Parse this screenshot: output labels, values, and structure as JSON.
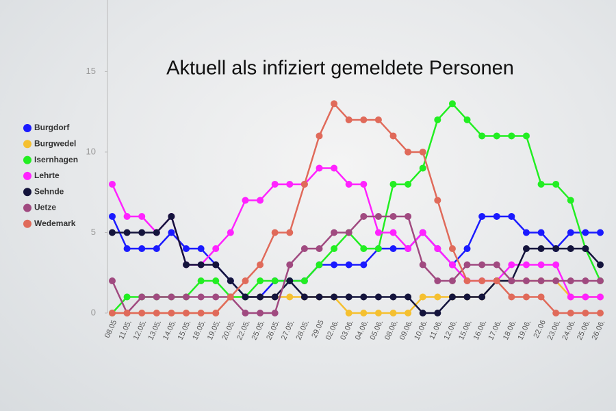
{
  "chart_data": {
    "type": "line",
    "title": "Aktuell als infiziert gemeldete Personen",
    "categories": [
      "08.05",
      "11.05.",
      "12.05.",
      "13.05.",
      "14.05.",
      "15.05.",
      "18.05.",
      "19.05.",
      "20.05.",
      "22.05.",
      "25.05.",
      "26.05.",
      "27.05.",
      "28.05.",
      "29.05",
      "02.06.",
      "03.06.",
      "04.06.",
      "05.06.",
      "08.06.",
      "09.06.",
      "10.06.",
      "11.06.",
      "12.06.",
      "15.06.",
      "16.06.",
      "17.06.",
      "18.06.",
      "19.06.",
      "22.06",
      "23.06.",
      "24.06.",
      "25.06.",
      "26.06."
    ],
    "series": [
      {
        "name": "Burgdorf",
        "color": "#1a1aff",
        "values": [
          6,
          4,
          4,
          4,
          5,
          4,
          4,
          3,
          2,
          1,
          1,
          2,
          2,
          2,
          3,
          3,
          3,
          3,
          4,
          4,
          4,
          5,
          4,
          3,
          4,
          6,
          6,
          6,
          5,
          5,
          4,
          5,
          5,
          5
        ]
      },
      {
        "name": "Burgwedel",
        "color": "#f5c030",
        "values": [
          0,
          0,
          0,
          0,
          0,
          0,
          0,
          0,
          1,
          1,
          1,
          1,
          1,
          1,
          1,
          1,
          0,
          0,
          0,
          0,
          0,
          1,
          1,
          1,
          1,
          1,
          2,
          2,
          2,
          2,
          2,
          1,
          1,
          1
        ]
      },
      {
        "name": "Isernhagen",
        "color": "#22ee22",
        "values": [
          0,
          1,
          1,
          1,
          1,
          1,
          2,
          2,
          1,
          1,
          2,
          2,
          2,
          2,
          3,
          4,
          5,
          4,
          4,
          8,
          8,
          9,
          12,
          13,
          12,
          11,
          11,
          11,
          11,
          8,
          8,
          7,
          4,
          2
        ]
      },
      {
        "name": "Lehrte",
        "color": "#ff22ff",
        "values": [
          8,
          6,
          6,
          5,
          6,
          3,
          3,
          4,
          5,
          7,
          7,
          8,
          8,
          8,
          9,
          9,
          8,
          8,
          5,
          5,
          4,
          5,
          4,
          3,
          2,
          2,
          2,
          3,
          3,
          3,
          3,
          1,
          1,
          1
        ]
      },
      {
        "name": "Sehnde",
        "color": "#14143c",
        "values": [
          5,
          5,
          5,
          5,
          6,
          3,
          3,
          3,
          2,
          1,
          1,
          1,
          2,
          1,
          1,
          1,
          1,
          1,
          1,
          1,
          1,
          0,
          0,
          1,
          1,
          1,
          2,
          2,
          4,
          4,
          4,
          4,
          4,
          3
        ]
      },
      {
        "name": "Uetze",
        "color": "#a04a80",
        "values": [
          2,
          0,
          1,
          1,
          1,
          1,
          1,
          1,
          1,
          0,
          0,
          0,
          3,
          4,
          4,
          5,
          5,
          6,
          6,
          6,
          6,
          3,
          2,
          2,
          3,
          3,
          3,
          2,
          2,
          2,
          2,
          2,
          2,
          2
        ]
      },
      {
        "name": "Wedemark",
        "color": "#e06a5a",
        "values": [
          0,
          0,
          0,
          0,
          0,
          0,
          0,
          0,
          1,
          2,
          3,
          5,
          5,
          8,
          11,
          13,
          12,
          12,
          12,
          11,
          10,
          10,
          7,
          4,
          2,
          2,
          2,
          1,
          1,
          1,
          0,
          0,
          0,
          0
        ]
      }
    ],
    "ylim": [
      0,
      19.4
    ],
    "yticks": [
      0,
      5,
      10,
      15
    ],
    "legend": "left"
  }
}
